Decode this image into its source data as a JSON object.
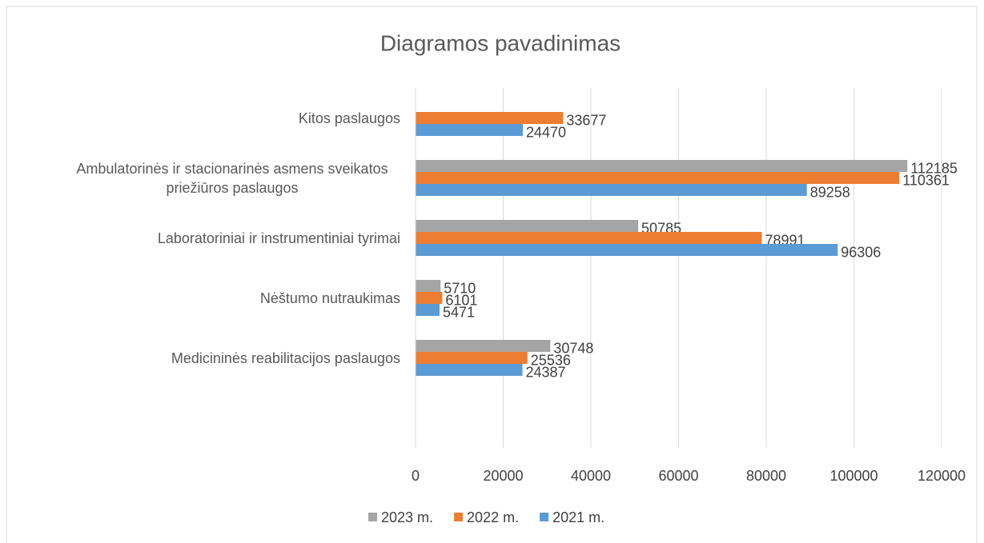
{
  "chart_data": {
    "type": "bar",
    "orientation": "horizontal",
    "title": "Diagramos pavadinimas",
    "categories": [
      "Kitos paslaugos",
      "Ambulatorinės ir stacionarinės asmens sveikatos priežiūros paslaugos",
      "Laboratoriniai ir instrumentiniai tyrimai",
      "Nėštumo nutraukimas",
      "Medicininės reabilitacijos paslaugos",
      null
    ],
    "series": [
      {
        "name": "2023 m.",
        "color": "#a5a5a5",
        "values": [
          null,
          112185,
          50785,
          5710,
          30748,
          null
        ]
      },
      {
        "name": "2022 m.",
        "color": "#ed7d31",
        "values": [
          33677,
          110361,
          78991,
          6101,
          25536,
          null
        ]
      },
      {
        "name": "2021 m.",
        "color": "#5b9bd5",
        "values": [
          24470,
          89258,
          96306,
          5471,
          24387,
          null
        ]
      }
    ],
    "xlim": [
      0,
      120000
    ],
    "xticks": [
      0,
      20000,
      40000,
      60000,
      80000,
      100000,
      120000
    ],
    "grid": true,
    "legend": "bottom"
  }
}
